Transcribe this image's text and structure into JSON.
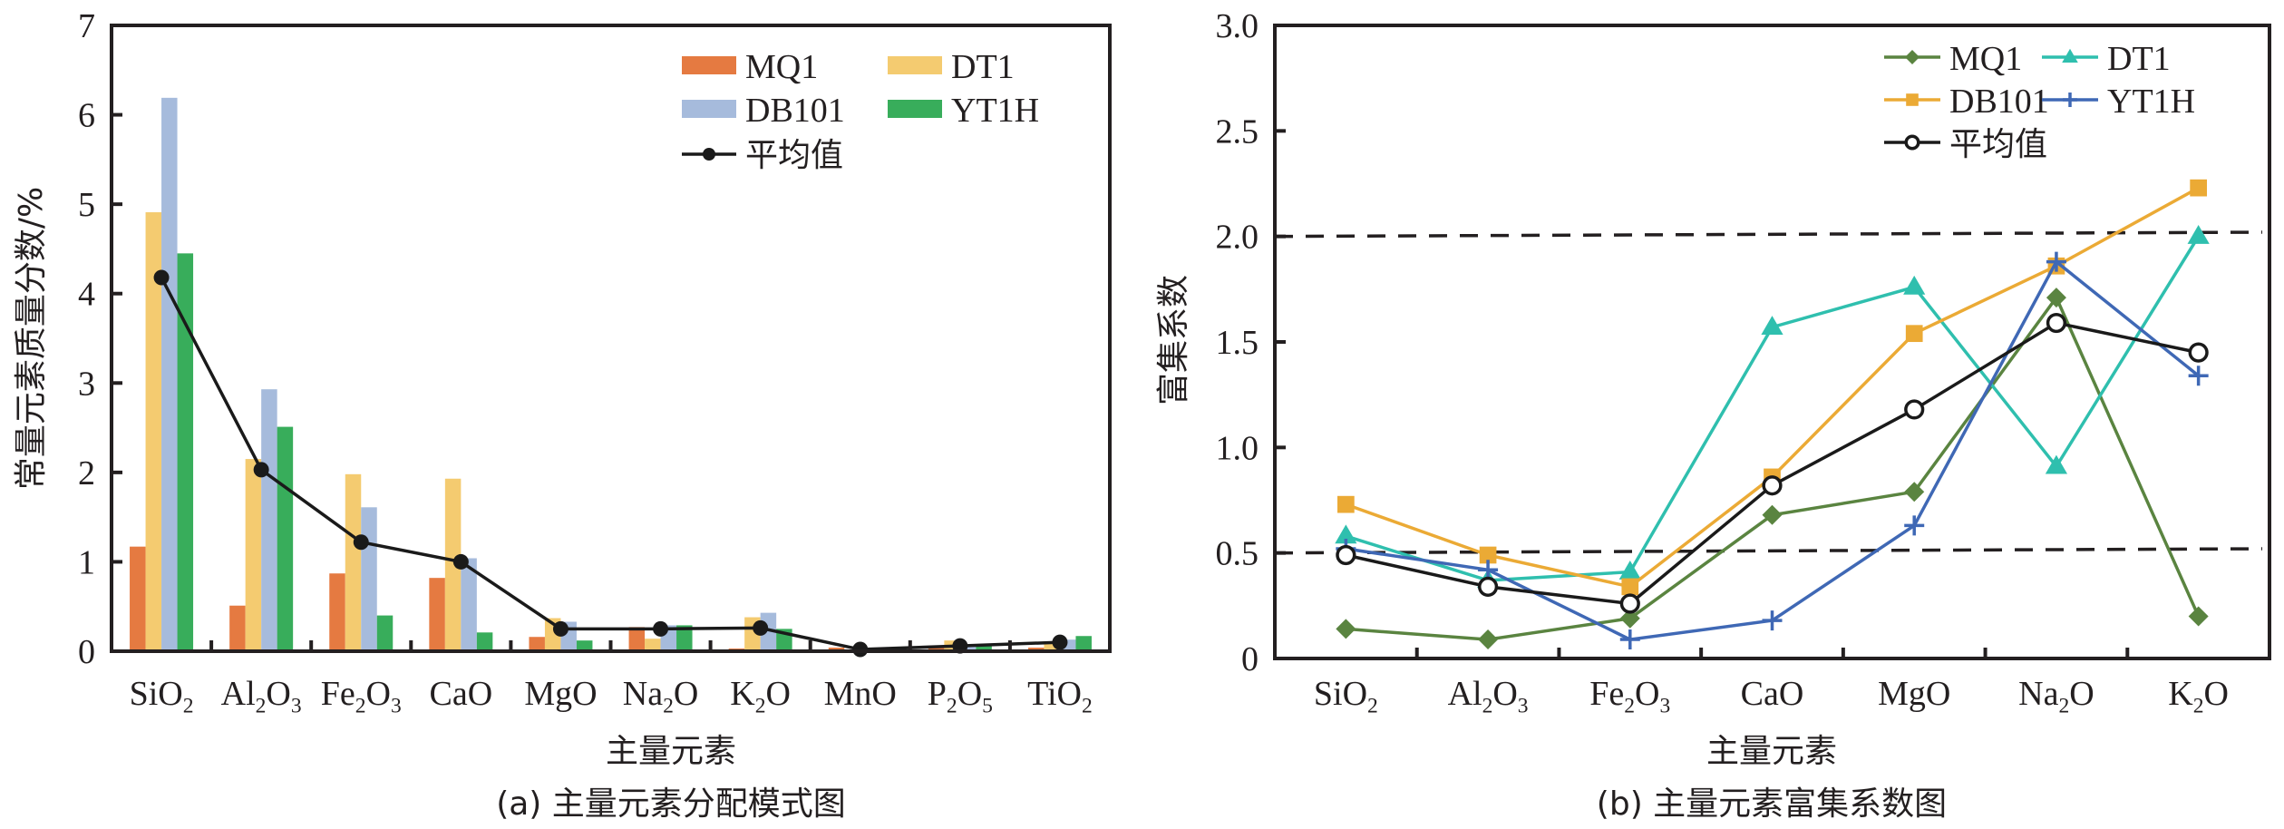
{
  "figure": {
    "panels": [
      "a",
      "b"
    ]
  },
  "chart_data": [
    {
      "type": "bar",
      "id": "a",
      "title": "(a) 主量元素分配模式图",
      "xlabel": "主量元素",
      "ylabel": "常量元素质量分数/%",
      "ylim": [
        0,
        7
      ],
      "yticks": [
        "0",
        "1",
        "2",
        "3",
        "4",
        "5",
        "6",
        "7"
      ],
      "categories": [
        {
          "base": "SiO",
          "sub": "2",
          "tail": ""
        },
        {
          "base": "Al",
          "sub": "2",
          "tail": "O",
          "sub2": "3"
        },
        {
          "base": "Fe",
          "sub": "2",
          "tail": "O",
          "sub2": "3"
        },
        {
          "base": "CaO",
          "sub": "",
          "tail": ""
        },
        {
          "base": "MgO",
          "sub": "",
          "tail": ""
        },
        {
          "base": "Na",
          "sub": "2",
          "tail": "O"
        },
        {
          "base": "K",
          "sub": "2",
          "tail": "O"
        },
        {
          "base": "MnO",
          "sub": "",
          "tail": ""
        },
        {
          "base": "P",
          "sub": "2",
          "tail": "O",
          "sub2": "5"
        },
        {
          "base": "TiO",
          "sub": "2",
          "tail": ""
        }
      ],
      "category_names": [
        "SiO2",
        "Al2O3",
        "Fe2O3",
        "CaO",
        "MgO",
        "Na2O",
        "K2O",
        "MnO",
        "P2O5",
        "TiO2"
      ],
      "series": [
        {
          "name": "MQ1",
          "color": "#e57a41",
          "values": [
            1.17,
            0.51,
            0.87,
            0.82,
            0.16,
            0.27,
            0.03,
            0.04,
            0.04,
            0.04
          ]
        },
        {
          "name": "DT1",
          "color": "#f4cb70",
          "values": [
            4.91,
            2.15,
            1.98,
            1.93,
            0.37,
            0.14,
            0.38,
            0.02,
            0.12,
            0.09
          ]
        },
        {
          "name": "DB101",
          "color": "#a6bbdc",
          "values": [
            6.19,
            2.93,
            1.61,
            1.04,
            0.33,
            0.29,
            0.43,
            0.04,
            0.05,
            0.13
          ]
        },
        {
          "name": "YT1H",
          "color": "#38ad5b",
          "values": [
            4.45,
            2.51,
            0.4,
            0.21,
            0.12,
            0.29,
            0.25,
            0.01,
            0.06,
            0.17
          ]
        }
      ],
      "mean": {
        "name": "平均值",
        "color": "#1a1a1a",
        "values": [
          4.18,
          2.03,
          1.22,
          1.0,
          0.25,
          0.25,
          0.26,
          0.02,
          0.06,
          0.1
        ]
      },
      "legend": {
        "placement": "top-right",
        "columns": 2
      },
      "grid": false
    },
    {
      "type": "line",
      "id": "b",
      "title": "(b) 主量元素富集系数图",
      "xlabel": "主量元素",
      "ylabel": "富集系数",
      "ylim": [
        0,
        3.0
      ],
      "yticks": [
        "0",
        "0.5",
        "1.0",
        "1.5",
        "2.0",
        "2.5",
        "3.0"
      ],
      "categories": [
        {
          "base": "SiO",
          "sub": "2",
          "tail": ""
        },
        {
          "base": "Al",
          "sub": "2",
          "tail": "O",
          "sub2": "3"
        },
        {
          "base": "Fe",
          "sub": "2",
          "tail": "O",
          "sub2": "3"
        },
        {
          "base": "CaO",
          "sub": "",
          "tail": ""
        },
        {
          "base": "MgO",
          "sub": "",
          "tail": ""
        },
        {
          "base": "Na",
          "sub": "2",
          "tail": "O"
        },
        {
          "base": "K",
          "sub": "2",
          "tail": "O"
        }
      ],
      "category_names": [
        "SiO2",
        "Al2O3",
        "Fe2O3",
        "CaO",
        "MgO",
        "Na2O",
        "K2O"
      ],
      "series": [
        {
          "name": "MQ1",
          "color": "#5a8440",
          "marker": "diamond",
          "values": [
            0.14,
            0.09,
            0.19,
            0.68,
            0.79,
            1.71,
            0.2
          ]
        },
        {
          "name": "DT1",
          "color": "#2fbfae",
          "marker": "triangle",
          "values": [
            0.58,
            0.37,
            0.41,
            1.57,
            1.76,
            0.91,
            2.0
          ]
        },
        {
          "name": "DB101",
          "color": "#ebaa35",
          "marker": "square",
          "values": [
            0.73,
            0.49,
            0.34,
            0.86,
            1.54,
            1.86,
            2.23
          ]
        },
        {
          "name": "YT1H",
          "color": "#3f68b5",
          "marker": "plus",
          "values": [
            0.52,
            0.42,
            0.09,
            0.18,
            0.63,
            1.88,
            1.34
          ]
        },
        {
          "name": "平均值",
          "color": "#1a1a1a",
          "marker": "open-circle",
          "values": [
            0.49,
            0.34,
            0.26,
            0.82,
            1.18,
            1.59,
            1.45
          ]
        }
      ],
      "reference_lines": [
        {
          "y_start": 2.0,
          "y_end": 2.02,
          "style": "dashed"
        },
        {
          "y_start": 0.5,
          "y_end": 0.52,
          "style": "dashed"
        }
      ],
      "legend": {
        "placement": "top-right",
        "columns": 2
      },
      "grid": false
    }
  ]
}
